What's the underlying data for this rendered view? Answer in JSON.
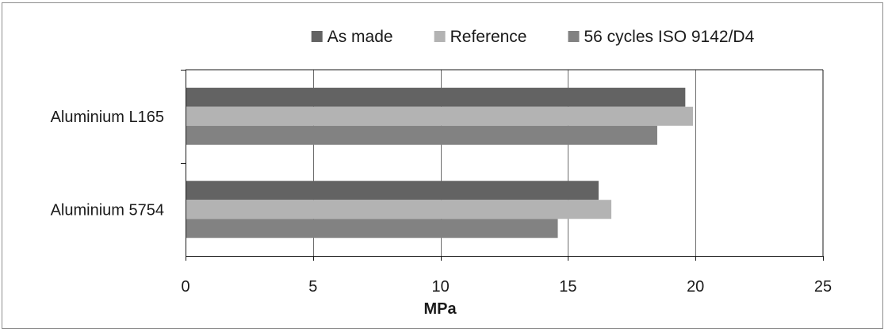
{
  "chart_data": {
    "type": "bar",
    "orientation": "horizontal",
    "categories": [
      "Aluminium L165",
      "Aluminium 5754"
    ],
    "series": [
      {
        "name": "As made",
        "values": [
          19.6,
          16.2
        ],
        "color": "#636363"
      },
      {
        "name": "Reference",
        "values": [
          19.9,
          16.7
        ],
        "color": "#b3b3b3"
      },
      {
        "name": "56 cycles ISO 9142/D4",
        "values": [
          18.5,
          14.6
        ],
        "color": "#828282"
      }
    ],
    "xlabel": "MPa",
    "ylabel": "",
    "xlim": [
      0,
      25
    ],
    "xticks": [
      0,
      5,
      10,
      15,
      20,
      25
    ],
    "grid": "vertical",
    "legend_position": "top"
  }
}
